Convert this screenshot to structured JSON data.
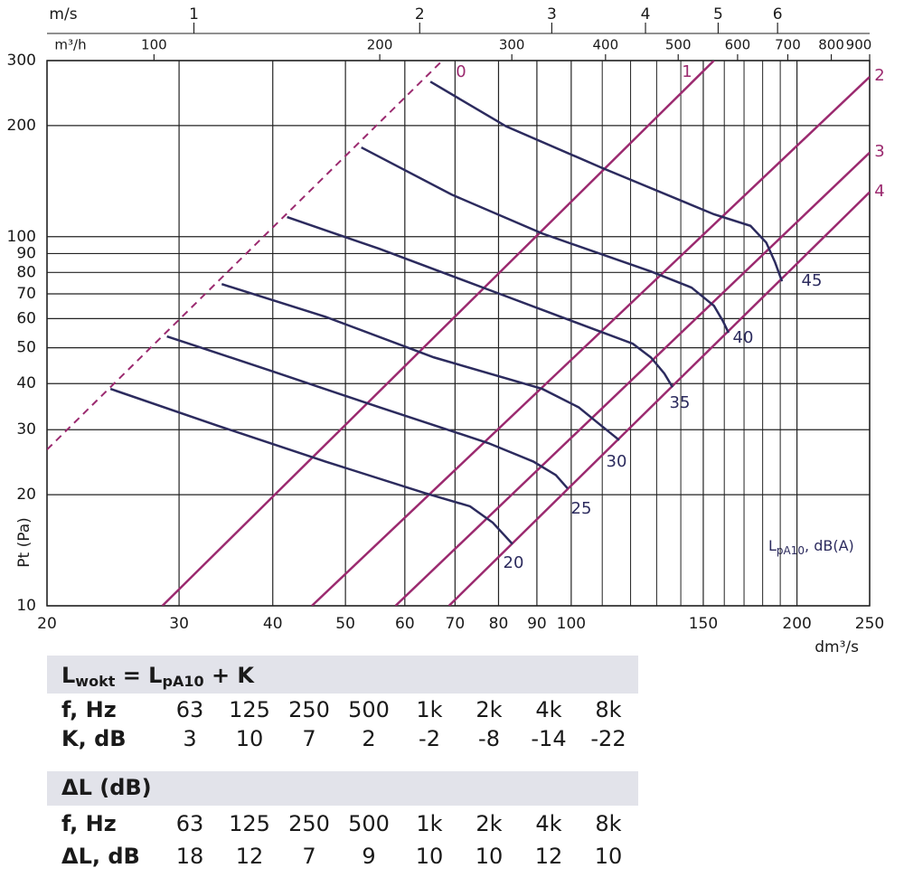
{
  "chart_data": {
    "type": "line",
    "xscale": "log",
    "yscale": "log",
    "grid": true,
    "xlabel": "dm³/s",
    "ylabel": "Pt (Pa)",
    "xlim": [
      20,
      250
    ],
    "ylim": [
      10,
      300
    ],
    "xticks": [
      20,
      30,
      40,
      50,
      60,
      70,
      80,
      90,
      100,
      150,
      200,
      250
    ],
    "xminor": [
      110,
      120,
      130,
      140,
      160,
      170,
      180,
      190
    ],
    "yticks": [
      10,
      20,
      30,
      40,
      50,
      60,
      70,
      80,
      90,
      100,
      200,
      300
    ],
    "top_axes": [
      {
        "label": "m³/h",
        "lim": [
          72,
          900
        ],
        "ticks": [
          100,
          200,
          300,
          400,
          500,
          600,
          700,
          800,
          900
        ]
      },
      {
        "label": "m/s",
        "lim": [
          0.637,
          7.96
        ],
        "ticks": [
          1,
          2,
          3,
          4,
          5,
          6
        ]
      }
    ],
    "annotation": {
      "main": "L",
      "sub": "pA10",
      "rest": ", dB(A)"
    },
    "series": [
      {
        "name": "0",
        "color": "#9b2a6f",
        "dashed": true,
        "x": [
          20,
          67
        ],
        "values": [
          26.5,
          297
        ]
      },
      {
        "name": "1",
        "color": "#9b2a6f",
        "x": [
          28.5,
          155
        ],
        "values": [
          10,
          300
        ]
      },
      {
        "name": "2",
        "color": "#9b2a6f",
        "x": [
          45.1,
          250
        ],
        "values": [
          10,
          271
        ]
      },
      {
        "name": "3",
        "color": "#9b2a6f",
        "x": [
          58.3,
          250
        ],
        "values": [
          10,
          169
        ]
      },
      {
        "name": "4",
        "color": "#9b2a6f",
        "x": [
          68.7,
          250
        ],
        "values": [
          10,
          132
        ]
      },
      {
        "name": "45",
        "color": "#2c2b5e",
        "x": [
          64.9,
          81.9,
          109.6,
          155,
          173.4,
          182,
          187,
          191
        ],
        "values": [
          263,
          199,
          154,
          115,
          107,
          96.4,
          85.2,
          75.7
        ]
      },
      {
        "name": "40",
        "color": "#2c2b5e",
        "x": [
          52.5,
          69.3,
          91.5,
          127.7,
          144.7,
          155,
          159.4,
          162.1
        ],
        "values": [
          174.5,
          130,
          102,
          80.5,
          72.8,
          65,
          59,
          54.9
        ]
      },
      {
        "name": "35",
        "color": "#2c2b5e",
        "x": [
          41.8,
          55.5,
          77.5,
          108.1,
          120.8,
          127.7,
          133.1,
          136.5
        ],
        "values": [
          113,
          92.7,
          71.9,
          55.8,
          51.3,
          47.1,
          42.6,
          39.1
        ]
      },
      {
        "name": "30",
        "color": "#2c2b5e",
        "x": [
          34.2,
          47,
          65.6,
          91.5,
          102.3,
          109.6,
          115.9
        ],
        "values": [
          74.4,
          60.7,
          47.1,
          38.7,
          34.5,
          30.8,
          28.1
        ]
      },
      {
        "name": "25",
        "color": "#2c2b5e",
        "x": [
          28.9,
          39.8,
          55.5,
          77.5,
          89,
          95.4,
          98.9
        ],
        "values": [
          53.7,
          43.3,
          34.5,
          27.6,
          24.6,
          22.6,
          20.8
        ]
      },
      {
        "name": "20",
        "color": "#2c2b5e",
        "x": [
          24.3,
          33.7,
          47,
          63.8,
          73.3,
          78.6,
          83.5
        ],
        "values": [
          38.7,
          30.8,
          24.6,
          20.2,
          18.6,
          16.8,
          14.7
        ]
      }
    ]
  },
  "tables": [
    {
      "title": [
        {
          "text": "L"
        },
        {
          "text": "wokt",
          "sub": true
        },
        {
          "text": " = L"
        },
        {
          "text": "pA10",
          "sub": true
        },
        {
          "text": " + K"
        }
      ],
      "rows": [
        [
          "f, Hz",
          63,
          125,
          250,
          500,
          "1k",
          "2k",
          "4k",
          "8k"
        ],
        [
          "K, dB",
          3,
          10,
          7,
          2,
          -2,
          -8,
          -14,
          -22
        ]
      ]
    },
    {
      "title": [
        {
          "text": "ΔL (dB)"
        }
      ],
      "rows": [
        [
          "f, Hz",
          63,
          125,
          250,
          500,
          "1k",
          "2k",
          "4k",
          "8k"
        ],
        [
          "ΔL, dB",
          18,
          12,
          7,
          9,
          10,
          10,
          12,
          10
        ]
      ]
    }
  ]
}
